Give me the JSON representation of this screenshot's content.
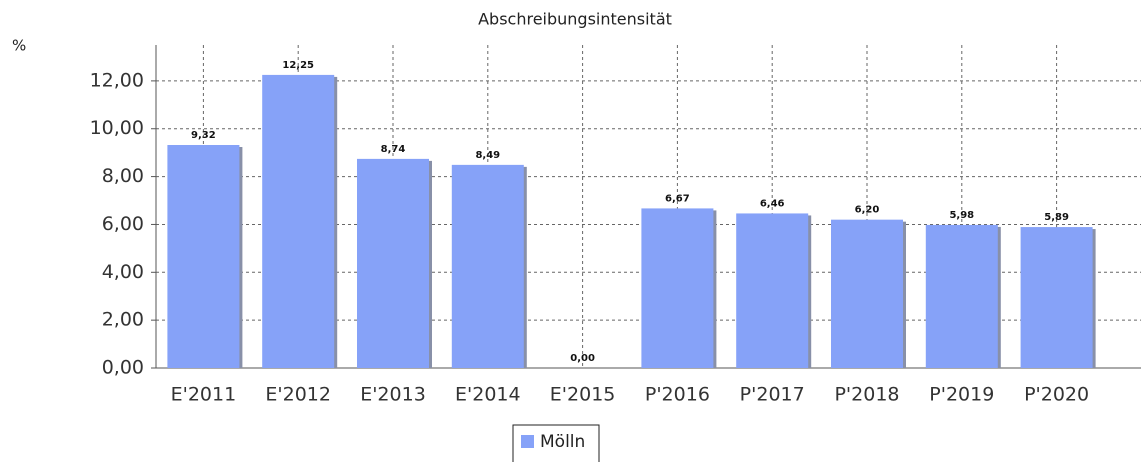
{
  "chart_data": {
    "type": "bar",
    "title": "Abschreibungsintensität",
    "y_label": "%",
    "categories": [
      "E'2011",
      "E'2012",
      "E'2013",
      "E'2014",
      "E'2015",
      "P'2016",
      "P'2017",
      "P'2018",
      "P'2019",
      "P'2020"
    ],
    "series": [
      {
        "name": "Mölln",
        "color": "#86a2f8",
        "values": [
          9.32,
          12.25,
          8.74,
          8.49,
          0,
          6.67,
          6.46,
          6.2,
          5.98,
          5.89
        ],
        "value_labels": [
          "9,32",
          "12,25",
          "8,74",
          "8,49",
          "0,00",
          "6,67",
          "6,46",
          "6,20",
          "5,98",
          "5,89"
        ]
      }
    ],
    "ylim": [
      0,
      13.5
    ],
    "yticks": [
      {
        "value": 0,
        "label": "0,00"
      },
      {
        "value": 2,
        "label": "2,00"
      },
      {
        "value": 4,
        "label": "4,00"
      },
      {
        "value": 6,
        "label": "6,00"
      },
      {
        "value": 8,
        "label": "8,00"
      },
      {
        "value": 10,
        "label": "10,00"
      },
      {
        "value": 12,
        "label": "12,00"
      }
    ],
    "grid": true,
    "legend": "bottom"
  }
}
